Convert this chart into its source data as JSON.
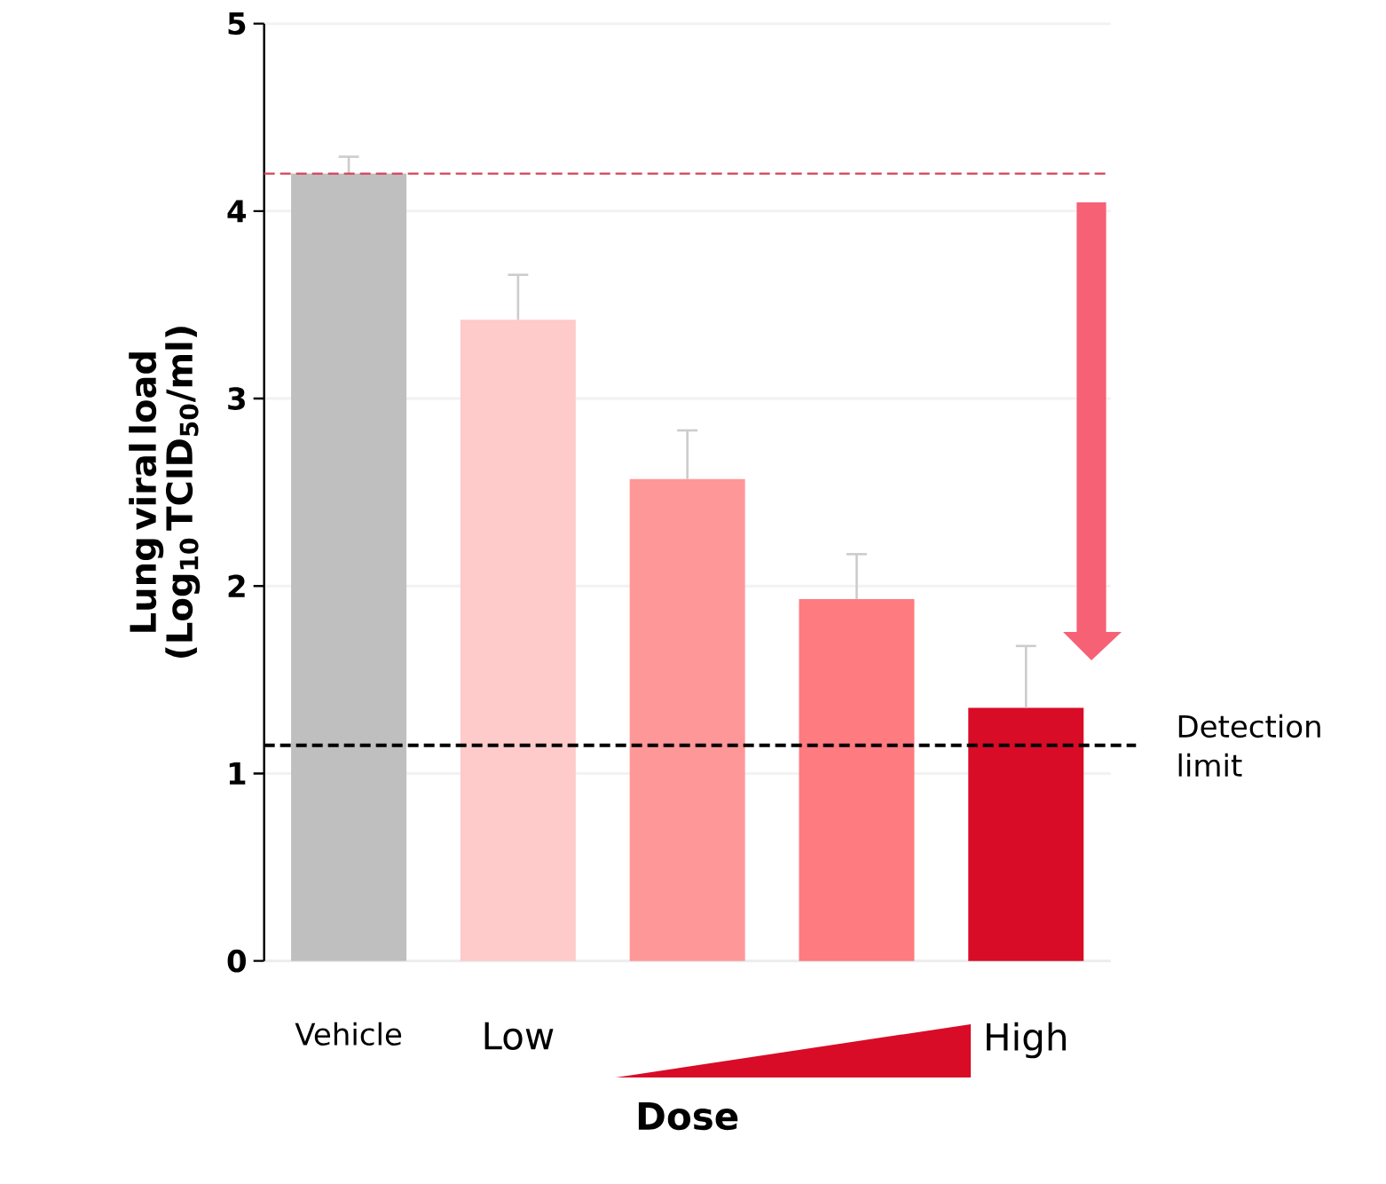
{
  "chart_data": {
    "type": "bar",
    "ylabel": "Lung viral load (Log$_{10}$ TCID$_{50}$/ml)",
    "xlabel": "Dose",
    "categories": [
      "Vehicle",
      "Low",
      null,
      null,
      "High"
    ],
    "values": [
      4.2,
      3.42,
      2.57,
      1.93,
      1.35
    ],
    "colors": [
      "#bfbfbf",
      "#fecaca",
      "#fe9798",
      "#fe7b80",
      "#d80c27"
    ],
    "errors": [
      [
        4.2,
        4.29
      ],
      [
        3.42,
        3.66
      ],
      [
        2.57,
        2.83
      ],
      [
        1.93,
        2.17
      ],
      [
        1.35,
        1.68
      ]
    ],
    "ylim": [
      0,
      5
    ],
    "yticks": [
      0,
      1,
      2,
      3,
      4,
      5
    ],
    "grid": "y",
    "ref_lines": [
      {
        "axis": "y",
        "value": 4.2,
        "color": "#d4425c",
        "line_style": "dashed"
      },
      {
        "axis": "y",
        "value": 1.15,
        "label": "Detection limit",
        "color": "#000000",
        "line_style": "dashed"
      }
    ]
  }
}
